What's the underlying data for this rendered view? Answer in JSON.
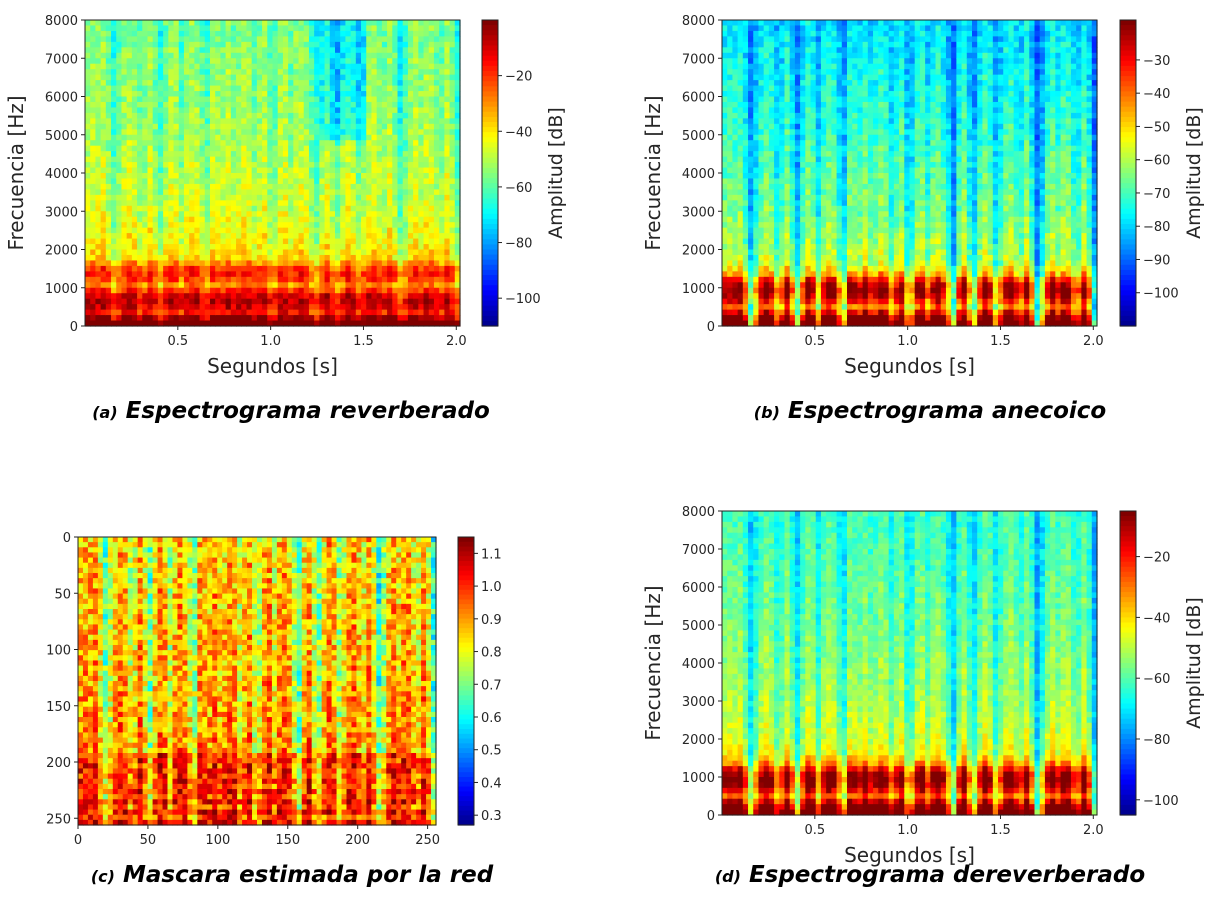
{
  "chart_data": [
    {
      "type": "heatmap",
      "panel_label": "(a)",
      "caption": "Espectrograma reverberado",
      "xlabel": "Segundos [s]",
      "ylabel": "Frecuencia [Hz]",
      "colorbar_label": "Amplitud [dB]",
      "colormap": "jet",
      "xlim": [
        0.0,
        2.02
      ],
      "ylim": [
        0,
        8000
      ],
      "x_ticks": [
        "0.5",
        "1.0",
        "1.5",
        "2.0"
      ],
      "y_ticks": [
        "0",
        "1000",
        "2000",
        "3000",
        "4000",
        "5000",
        "6000",
        "7000",
        "8000"
      ],
      "colorbar_range": [
        -110,
        0
      ],
      "colorbar_ticks": [
        "−20",
        "−40",
        "−60",
        "−80",
        "−100"
      ]
    },
    {
      "type": "heatmap",
      "panel_label": "(b)",
      "caption": "Espectrograma anecoico",
      "xlabel": "Segundos [s]",
      "ylabel": "Frecuencia [Hz]",
      "colorbar_label": "Amplitud [dB]",
      "colormap": "jet",
      "xlim": [
        0.0,
        2.02
      ],
      "ylim": [
        0,
        8000
      ],
      "x_ticks": [
        "0.5",
        "1.0",
        "1.5",
        "2.0"
      ],
      "y_ticks": [
        "0",
        "1000",
        "2000",
        "3000",
        "4000",
        "5000",
        "6000",
        "7000",
        "8000"
      ],
      "colorbar_range": [
        -110,
        -18
      ],
      "colorbar_ticks": [
        "−30",
        "−40",
        "−50",
        "−60",
        "−70",
        "−80",
        "−90",
        "−100"
      ]
    },
    {
      "type": "heatmap",
      "panel_label": "(c)",
      "caption": "Mascara estimada por la red",
      "xlabel": "",
      "ylabel": "",
      "colorbar_label": "",
      "colormap": "jet",
      "xlim": [
        0,
        256
      ],
      "ylim": [
        256,
        0
      ],
      "x_ticks": [
        "0",
        "50",
        "100",
        "150",
        "200",
        "250"
      ],
      "y_ticks": [
        "0",
        "50",
        "100",
        "150",
        "200",
        "250"
      ],
      "colorbar_range": [
        0.27,
        1.15
      ],
      "colorbar_ticks": [
        "1.1",
        "1.0",
        "0.9",
        "0.8",
        "0.7",
        "0.6",
        "0.5",
        "0.4",
        "0.3"
      ]
    },
    {
      "type": "heatmap",
      "panel_label": "(d)",
      "caption": "Espectrograma dereverberado",
      "xlabel": "Segundos [s]",
      "ylabel": "Frecuencia [Hz]",
      "colorbar_label": "Amplitud [dB]",
      "colormap": "jet",
      "xlim": [
        0.0,
        2.02
      ],
      "ylim": [
        0,
        8000
      ],
      "x_ticks": [
        "0.5",
        "1.0",
        "1.5",
        "2.0"
      ],
      "y_ticks": [
        "0",
        "1000",
        "2000",
        "3000",
        "4000",
        "5000",
        "6000",
        "7000",
        "8000"
      ],
      "colorbar_range": [
        -105,
        -5
      ],
      "colorbar_ticks": [
        "−20",
        "−40",
        "−60",
        "−80",
        "−100"
      ]
    }
  ]
}
